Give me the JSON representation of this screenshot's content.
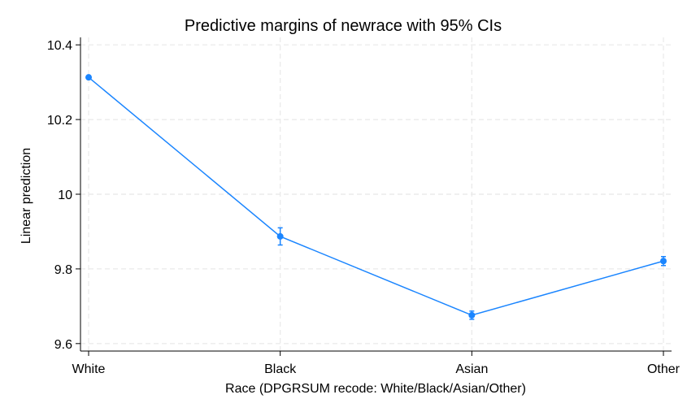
{
  "chart_data": {
    "type": "line",
    "title": "Predictive margins of newrace with 95% CIs",
    "xlabel": "Race (DPGRSUM recode: White/Black/Asian/Other)",
    "ylabel": "Linear prediction",
    "categories": [
      "White",
      "Black",
      "Asian",
      "Other"
    ],
    "series": [
      {
        "values": [
          10.313,
          9.887,
          9.676,
          9.821
        ],
        "ci_lower": [
          10.311,
          9.864,
          9.665,
          9.809
        ],
        "ci_upper": [
          10.315,
          9.91,
          9.687,
          9.833
        ]
      }
    ],
    "ylim": [
      9.58,
      10.42
    ],
    "yticks": [
      9.6,
      9.8,
      10,
      10.2,
      10.4
    ],
    "ytick_labels": [
      "9.6",
      "9.8",
      "10",
      "10.2",
      "10.4"
    ],
    "grid": true,
    "colors": {
      "series": "#1a85ff",
      "grid": "#e8e8e8",
      "axis": "#000000"
    }
  }
}
